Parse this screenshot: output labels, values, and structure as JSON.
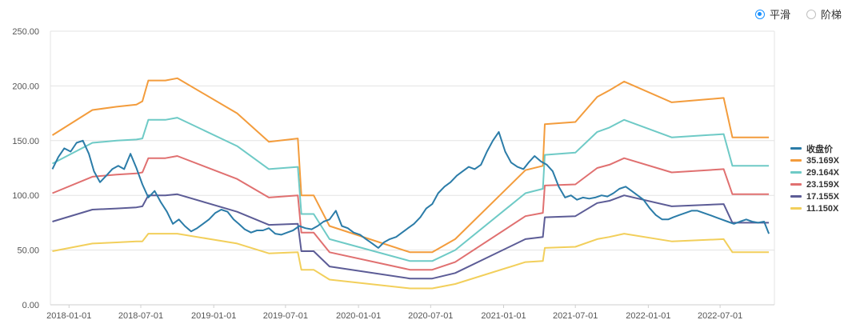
{
  "toggle": {
    "smooth_label": "平滑",
    "step_label": "阶梯",
    "selected": "smooth"
  },
  "chart_data": {
    "type": "line",
    "x_ticks": [
      "2018-01-01",
      "2018-07-01",
      "2019-01-01",
      "2019-07-01",
      "2020-01-01",
      "2020-07-01",
      "2021-01-01",
      "2021-07-01",
      "2022-01-01",
      "2022-07-01"
    ],
    "y_ticks": [
      "0.00",
      "50.00",
      "100.00",
      "150.00",
      "200.00",
      "250.00"
    ],
    "ylim": [
      0,
      250
    ],
    "xlim": [
      "2017-11-15",
      "2022-11-15"
    ],
    "grid": "horizontal",
    "legend_position": "right",
    "series": [
      {
        "name": "收盘价",
        "color": "#2b7ca8",
        "x": [
          "2017-11-20",
          "2017-12-05",
          "2017-12-20",
          "2018-01-05",
          "2018-01-20",
          "2018-02-05",
          "2018-02-20",
          "2018-03-05",
          "2018-03-20",
          "2018-04-05",
          "2018-04-20",
          "2018-05-05",
          "2018-05-20",
          "2018-06-05",
          "2018-06-20",
          "2018-07-05",
          "2018-07-20",
          "2018-08-05",
          "2018-08-20",
          "2018-09-05",
          "2018-09-20",
          "2018-10-05",
          "2018-10-20",
          "2018-11-05",
          "2018-11-20",
          "2018-12-05",
          "2018-12-20",
          "2019-01-05",
          "2019-01-20",
          "2019-02-05",
          "2019-02-20",
          "2019-03-05",
          "2019-03-20",
          "2019-04-05",
          "2019-04-20",
          "2019-05-05",
          "2019-05-20",
          "2019-06-05",
          "2019-06-20",
          "2019-07-05",
          "2019-07-20",
          "2019-08-05",
          "2019-08-20",
          "2019-09-05",
          "2019-09-20",
          "2019-10-05",
          "2019-10-20",
          "2019-11-05",
          "2019-11-20",
          "2019-12-05",
          "2019-12-20",
          "2020-01-05",
          "2020-01-20",
          "2020-02-05",
          "2020-02-20",
          "2020-03-05",
          "2020-03-20",
          "2020-04-05",
          "2020-04-20",
          "2020-05-05",
          "2020-05-20",
          "2020-06-05",
          "2020-06-20",
          "2020-07-05",
          "2020-07-20",
          "2020-08-05",
          "2020-08-20",
          "2020-09-05",
          "2020-09-20",
          "2020-10-05",
          "2020-10-20",
          "2020-11-05",
          "2020-11-20",
          "2020-12-05",
          "2020-12-20",
          "2021-01-05",
          "2021-01-20",
          "2021-02-05",
          "2021-02-20",
          "2021-03-05",
          "2021-03-20",
          "2021-04-05",
          "2021-04-20",
          "2021-05-05",
          "2021-05-20",
          "2021-06-05",
          "2021-06-20",
          "2021-07-05",
          "2021-07-20",
          "2021-08-05",
          "2021-08-20",
          "2021-09-05",
          "2021-09-20",
          "2021-10-05",
          "2021-10-20",
          "2021-11-05",
          "2021-11-20",
          "2021-12-05",
          "2021-12-20",
          "2022-01-05",
          "2022-01-20",
          "2022-02-05",
          "2022-02-20",
          "2022-03-05",
          "2022-03-20",
          "2022-04-05",
          "2022-04-20",
          "2022-05-05",
          "2022-05-20",
          "2022-06-05",
          "2022-06-20",
          "2022-07-05",
          "2022-07-20",
          "2022-08-05",
          "2022-08-20",
          "2022-09-05",
          "2022-09-20",
          "2022-10-05",
          "2022-10-20",
          "2022-11-01"
        ],
        "values": [
          124,
          135,
          143,
          140,
          148,
          150,
          138,
          122,
          112,
          118,
          124,
          127,
          124,
          138,
          125,
          110,
          98,
          104,
          94,
          85,
          74,
          78,
          72,
          67,
          70,
          74,
          78,
          84,
          87,
          85,
          78,
          74,
          69,
          66,
          68,
          68,
          70,
          65,
          64,
          66,
          68,
          72,
          70,
          69,
          72,
          76,
          78,
          86,
          72,
          70,
          66,
          64,
          60,
          56,
          52,
          57,
          60,
          62,
          66,
          70,
          74,
          80,
          88,
          92,
          102,
          108,
          112,
          118,
          122,
          126,
          124,
          128,
          140,
          150,
          158,
          140,
          130,
          126,
          124,
          130,
          136,
          131,
          128,
          122,
          108,
          98,
          100,
          96,
          98,
          97,
          98,
          100,
          99,
          102,
          106,
          108,
          104,
          100,
          96,
          88,
          82,
          78,
          78,
          80,
          82,
          84,
          86,
          86,
          84,
          82,
          80,
          78,
          76,
          74,
          76,
          78,
          76,
          75,
          76,
          65
        ]
      },
      {
        "name": "35.169X",
        "color": "#f39c3c",
        "x": [
          "2017-11-20",
          "2018-03-01",
          "2018-05-01",
          "2018-06-20",
          "2018-07-05",
          "2018-07-20",
          "2018-09-01",
          "2018-10-01",
          "2019-03-01",
          "2019-05-20",
          "2019-08-01",
          "2019-08-10",
          "2019-09-10",
          "2019-10-20",
          "2020-05-10",
          "2020-07-05",
          "2020-09-01",
          "2021-02-25",
          "2021-04-10",
          "2021-04-15",
          "2021-07-01",
          "2021-08-25",
          "2021-09-25",
          "2021-11-01",
          "2022-03-01",
          "2022-07-10",
          "2022-08-01",
          "2022-11-01"
        ],
        "values": [
          155,
          178,
          181,
          183,
          186,
          205,
          205,
          207,
          175,
          149,
          152,
          100,
          100,
          72,
          48,
          48,
          60,
          123,
          127,
          165,
          167,
          190,
          196,
          204,
          185,
          189,
          153,
          153
        ]
      },
      {
        "name": "29.164X",
        "color": "#6ecac6",
        "x": [
          "2017-11-20",
          "2018-03-01",
          "2018-05-01",
          "2018-06-20",
          "2018-07-05",
          "2018-07-20",
          "2018-09-01",
          "2018-10-01",
          "2019-03-01",
          "2019-05-20",
          "2019-08-01",
          "2019-08-10",
          "2019-09-10",
          "2019-10-20",
          "2020-05-10",
          "2020-07-05",
          "2020-09-01",
          "2021-02-25",
          "2021-04-10",
          "2021-04-15",
          "2021-07-01",
          "2021-08-25",
          "2021-09-25",
          "2021-11-01",
          "2022-03-01",
          "2022-07-10",
          "2022-08-01",
          "2022-11-01"
        ],
        "values": [
          129,
          148,
          150,
          151,
          152,
          169,
          169,
          171,
          145,
          124,
          126,
          83,
          83,
          60,
          40,
          40,
          50,
          102,
          106,
          137,
          139,
          158,
          162,
          169,
          153,
          156,
          127,
          127
        ]
      },
      {
        "name": "23.159X",
        "color": "#e07070",
        "x": [
          "2017-11-20",
          "2018-03-01",
          "2018-05-01",
          "2018-06-20",
          "2018-07-05",
          "2018-07-20",
          "2018-09-01",
          "2018-10-01",
          "2019-03-01",
          "2019-05-20",
          "2019-08-01",
          "2019-08-10",
          "2019-09-10",
          "2019-10-20",
          "2020-05-10",
          "2020-07-05",
          "2020-09-01",
          "2021-02-25",
          "2021-04-10",
          "2021-04-15",
          "2021-07-01",
          "2021-08-25",
          "2021-09-25",
          "2021-11-01",
          "2022-03-01",
          "2022-07-10",
          "2022-08-01",
          "2022-11-01"
        ],
        "values": [
          102,
          117,
          119,
          120,
          121,
          134,
          134,
          136,
          115,
          98,
          100,
          66,
          66,
          48,
          32,
          32,
          39,
          81,
          84,
          109,
          110,
          125,
          128,
          134,
          121,
          124,
          101,
          101
        ]
      },
      {
        "name": "17.155X",
        "color": "#5c5c96",
        "x": [
          "2017-11-20",
          "2018-03-01",
          "2018-05-01",
          "2018-06-20",
          "2018-07-05",
          "2018-07-20",
          "2018-09-01",
          "2018-10-01",
          "2019-03-01",
          "2019-05-20",
          "2019-08-01",
          "2019-08-10",
          "2019-09-10",
          "2019-10-20",
          "2020-05-10",
          "2020-07-05",
          "2020-09-01",
          "2021-02-25",
          "2021-04-10",
          "2021-04-15",
          "2021-07-01",
          "2021-08-25",
          "2021-09-25",
          "2021-11-01",
          "2022-03-01",
          "2022-07-10",
          "2022-08-01",
          "2022-11-01"
        ],
        "values": [
          76,
          87,
          88,
          89,
          90,
          100,
          100,
          101,
          85,
          73,
          74,
          49,
          49,
          35,
          24,
          24,
          29,
          60,
          62,
          80,
          81,
          93,
          95,
          100,
          90,
          92,
          75,
          75
        ]
      },
      {
        "name": "11.150X",
        "color": "#f2cf5b",
        "x": [
          "2017-11-20",
          "2018-03-01",
          "2018-05-01",
          "2018-06-20",
          "2018-07-05",
          "2018-07-20",
          "2018-09-01",
          "2018-10-01",
          "2019-03-01",
          "2019-05-20",
          "2019-08-01",
          "2019-08-10",
          "2019-09-10",
          "2019-10-20",
          "2020-05-10",
          "2020-07-05",
          "2020-09-01",
          "2021-02-25",
          "2021-04-10",
          "2021-04-15",
          "2021-07-01",
          "2021-08-25",
          "2021-09-25",
          "2021-11-01",
          "2022-03-01",
          "2022-07-10",
          "2022-08-01",
          "2022-11-01"
        ],
        "values": [
          49,
          56,
          57,
          58,
          58,
          65,
          65,
          65,
          56,
          47,
          48,
          32,
          32,
          23,
          15,
          15,
          19,
          39,
          40,
          52,
          53,
          60,
          62,
          65,
          58,
          60,
          48,
          48
        ]
      }
    ]
  }
}
